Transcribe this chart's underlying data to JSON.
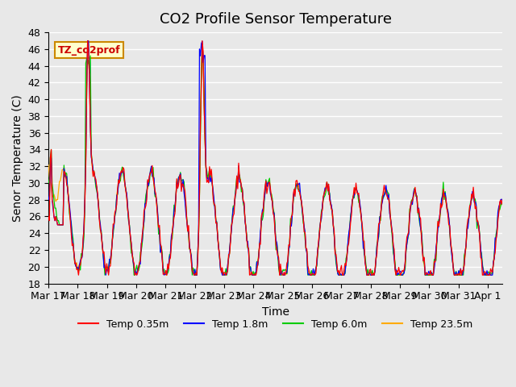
{
  "title": "CO2 Profile Sensor Temperature",
  "ylabel": "Senor Temperature (C)",
  "xlabel": "Time",
  "legend_label": "TZ_co2prof",
  "ylim": [
    18,
    48
  ],
  "yticks": [
    18,
    20,
    22,
    24,
    26,
    28,
    30,
    32,
    34,
    36,
    38,
    40,
    42,
    44,
    46,
    48
  ],
  "series_labels": [
    "Temp 0.35m",
    "Temp 1.8m",
    "Temp 6.0m",
    "Temp 23.5m"
  ],
  "series_colors": [
    "#ff0000",
    "#0000ff",
    "#00cc00",
    "#ffaa00"
  ],
  "plot_bg_color": "#e8e8e8",
  "grid_color": "#ffffff",
  "title_fontsize": 13,
  "axis_label_fontsize": 10,
  "tick_fontsize": 9
}
